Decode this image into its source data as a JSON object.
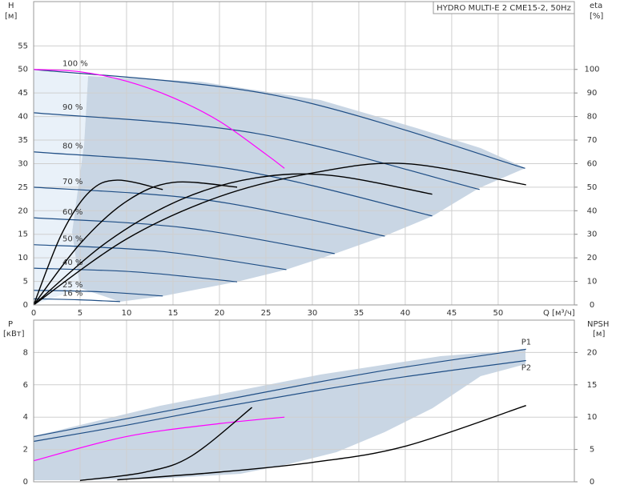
{
  "chart_data": [
    {
      "type": "line",
      "title": "HYDRO MULTI-E 2 CME15-2, 50Hz",
      "y_label": "H",
      "y_unit": "[м]",
      "y2_label": "eta",
      "y2_unit": "[%]",
      "x_label": "Q [м³/ч]",
      "xlim": [
        0,
        58.2
      ],
      "xticks": [
        0,
        5,
        10,
        15,
        20,
        25,
        30,
        35,
        40,
        45,
        50
      ],
      "ylim": [
        0,
        64.4
      ],
      "yticks": [
        0,
        5,
        10,
        15,
        20,
        25,
        30,
        35,
        40,
        45,
        50,
        55
      ],
      "y2lim": [
        0,
        128.8
      ],
      "y2ticks": [
        0,
        10,
        20,
        30,
        40,
        50,
        60,
        70,
        80,
        90,
        100
      ],
      "grid": true,
      "series": [
        {
          "name": "100 %",
          "color": "#1f4e85",
          "x": [
            0,
            26.5,
            52.9
          ],
          "values": [
            50,
            44.3,
            29
          ]
        },
        {
          "name": "90 %",
          "color": "#1f4e85",
          "x": [
            0,
            24,
            48
          ],
          "values": [
            40.8,
            36.4,
            24.5
          ]
        },
        {
          "name": "80 %",
          "color": "#1f4e85",
          "x": [
            0,
            21.5,
            42.9
          ],
          "values": [
            32.5,
            28.8,
            18.9
          ]
        },
        {
          "name": "70 %",
          "color": "#1f4e85",
          "x": [
            0,
            18.9,
            37.8
          ],
          "values": [
            25,
            22.2,
            14.6
          ]
        },
        {
          "name": "60 %",
          "color": "#1f4e85",
          "x": [
            0,
            16.2,
            32.4
          ],
          "values": [
            18.5,
            16.4,
            10.9
          ]
        },
        {
          "name": "50 %",
          "color": "#1f4e85",
          "x": [
            0,
            13.6,
            27.2
          ],
          "values": [
            12.8,
            11.4,
            7.5
          ]
        },
        {
          "name": "40 %",
          "color": "#1f4e85",
          "x": [
            0,
            11,
            21.9
          ],
          "values": [
            7.8,
            7.0,
            4.9
          ]
        },
        {
          "name": "25 %",
          "color": "#1f4e85",
          "x": [
            0,
            7,
            13.9
          ],
          "values": [
            3.1,
            2.8,
            1.9
          ]
        },
        {
          "name": "16 %",
          "color": "#1f4e85",
          "x": [
            0,
            4.7,
            9.3
          ],
          "values": [
            1.3,
            1.1,
            0.7
          ]
        },
        {
          "color": "#ff00ff",
          "x": [
            0,
            5,
            10,
            15,
            20,
            25,
            27
          ],
          "values": [
            50,
            49.5,
            47.5,
            44,
            39,
            32,
            29
          ]
        },
        {
          "color": "#000000",
          "axis": "y2",
          "x": [
            0,
            10,
            20,
            30,
            40,
            53
          ],
          "values": [
            0,
            28,
            46,
            56,
            60,
            51
          ]
        },
        {
          "color": "#000000",
          "axis": "y2",
          "x": [
            0,
            8,
            16,
            24,
            32,
            42.9
          ],
          "values": [
            0,
            27,
            45,
            54,
            55,
            47
          ]
        },
        {
          "color": "#000000",
          "axis": "y2",
          "x": [
            0,
            5,
            10,
            15,
            21.9
          ],
          "values": [
            0,
            26,
            44,
            52,
            50
          ]
        },
        {
          "color": "#000000",
          "axis": "y2",
          "x": [
            0,
            3,
            6,
            9,
            13.9
          ],
          "values": [
            0,
            30,
            48,
            53,
            49
          ]
        }
      ]
    },
    {
      "type": "line",
      "y_label": "P",
      "y_unit": "[кВт]",
      "y2_label": "NPSH",
      "y2_unit": "[м]",
      "xlim": [
        0,
        58.2
      ],
      "xticks": [
        0,
        5,
        10,
        15,
        20,
        25,
        30,
        35,
        40,
        45,
        50
      ],
      "ylim": [
        0,
        10
      ],
      "yticks": [
        0,
        2,
        4,
        6,
        8
      ],
      "y2lim": [
        0,
        25
      ],
      "y2ticks": [
        0,
        5,
        10,
        15,
        20
      ],
      "grid": true,
      "series": [
        {
          "name": "P1",
          "color": "#1f4e85",
          "x": [
            0,
            10,
            20,
            30,
            40,
            53
          ],
          "values": [
            2.8,
            3.9,
            5.0,
            6.1,
            7.1,
            8.2
          ]
        },
        {
          "name": "P2",
          "color": "#1f4e85",
          "x": [
            0,
            10,
            20,
            30,
            40,
            53
          ],
          "values": [
            2.5,
            3.5,
            4.6,
            5.6,
            6.5,
            7.5
          ]
        },
        {
          "color": "#ff00ff",
          "x": [
            0,
            10,
            20,
            27
          ],
          "values": [
            1.3,
            2.8,
            3.6,
            4.0
          ]
        },
        {
          "color": "#000000",
          "axis": "y2",
          "x": [
            9,
            20,
            30,
            40,
            53
          ],
          "values": [
            0.3,
            1.5,
            3,
            5.5,
            11.8
          ]
        },
        {
          "color": "#000000",
          "axis": "y2",
          "x": [
            5,
            12,
            17,
            23.5
          ],
          "values": [
            0.2,
            1.5,
            4,
            11.5
          ]
        }
      ]
    }
  ]
}
